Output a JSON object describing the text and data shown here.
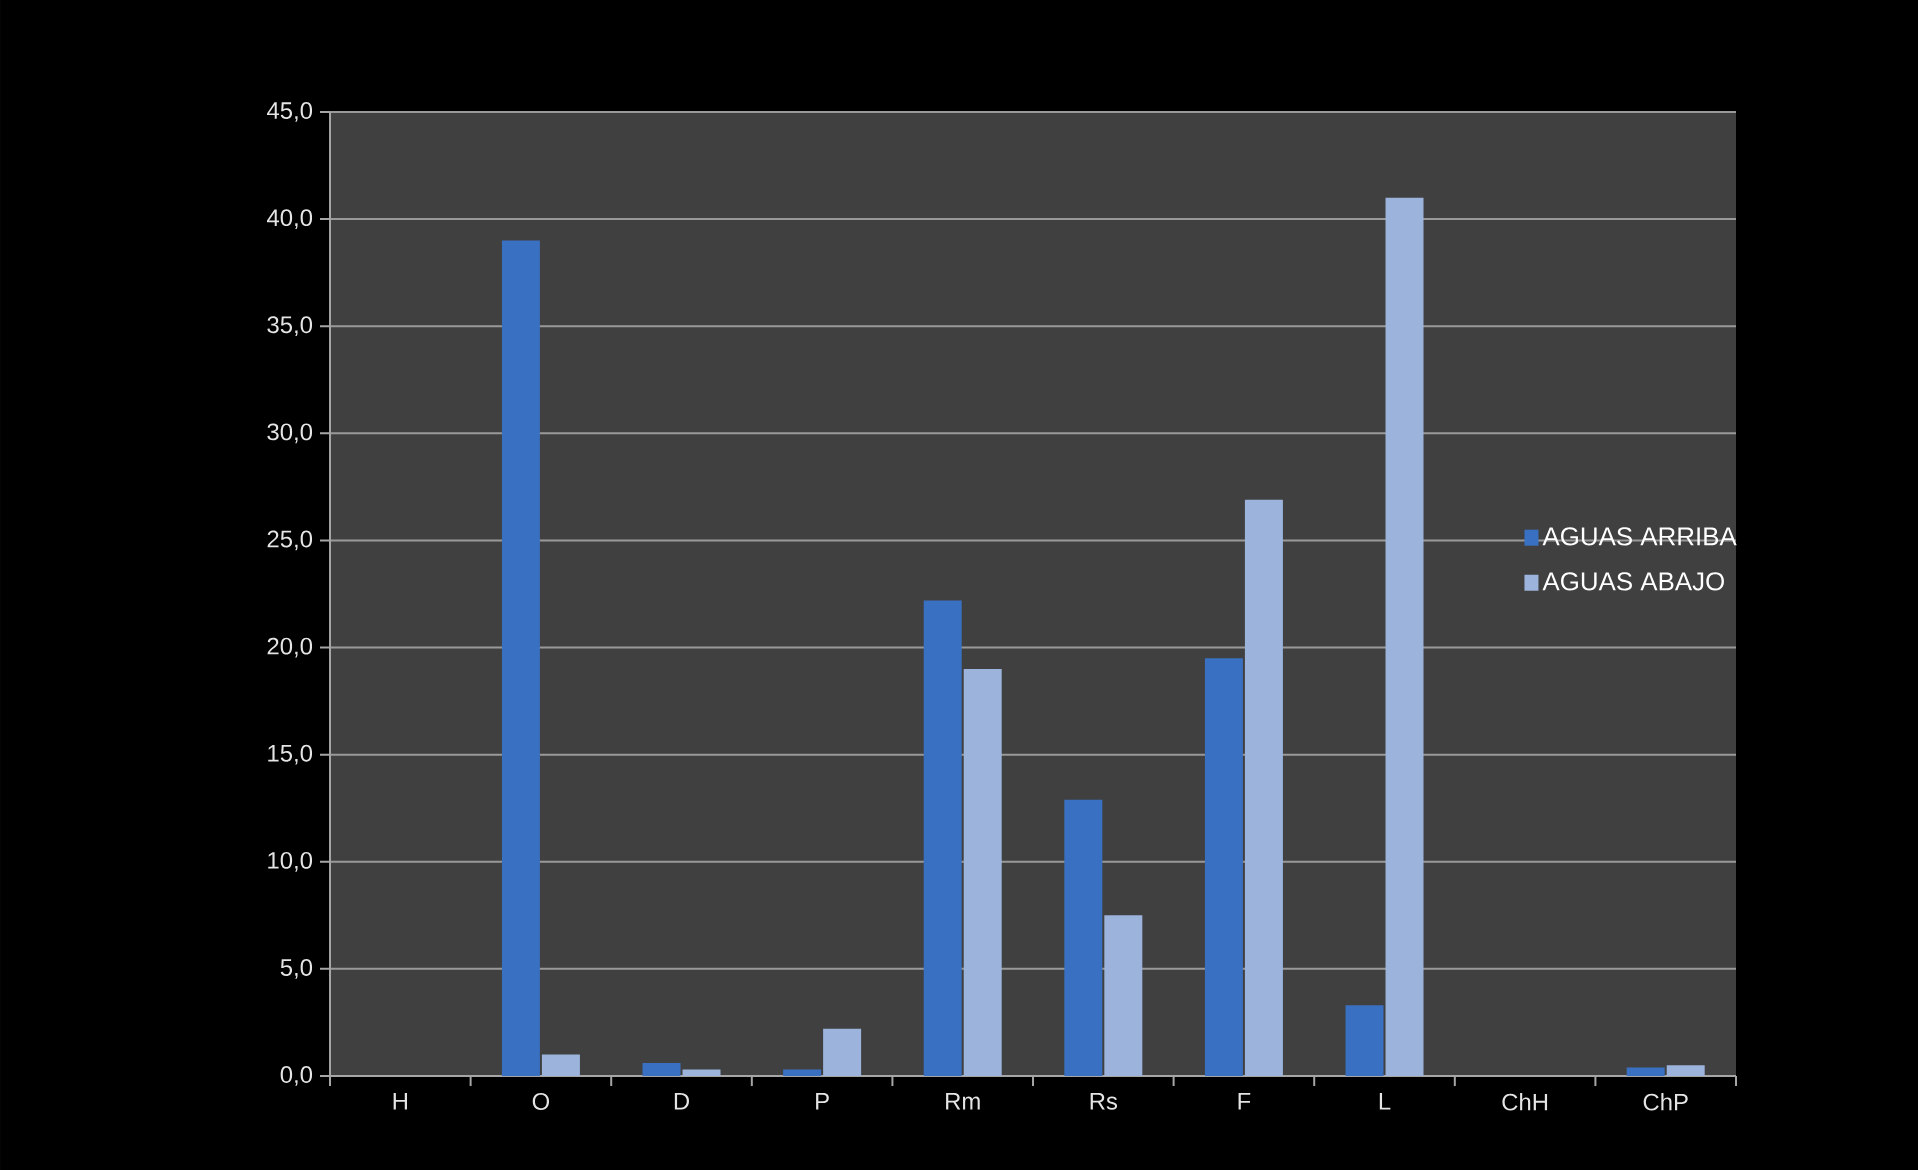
{
  "chart_data": {
    "type": "bar",
    "categories": [
      "H",
      "O",
      "D",
      "P",
      "Rm",
      "Rs",
      "F",
      "L",
      "ChH",
      "ChP"
    ],
    "series": [
      {
        "name": "AGUAS ARRIBA",
        "color": "#3a70c2",
        "values": [
          0,
          39.0,
          0.6,
          0.3,
          22.2,
          12.9,
          19.5,
          3.3,
          0,
          0.4
        ]
      },
      {
        "name": "AGUAS ABAJO",
        "color": "#9cb3db",
        "values": [
          0,
          1.0,
          0.3,
          2.2,
          19.0,
          7.5,
          26.9,
          41.0,
          0,
          0.5
        ]
      }
    ],
    "ylim": [
      0,
      45
    ],
    "yticks": [
      {
        "value": 0,
        "label": "0,0"
      },
      {
        "value": 5,
        "label": "5,0"
      },
      {
        "value": 10,
        "label": "10,0"
      },
      {
        "value": 15,
        "label": "15,0"
      },
      {
        "value": 20,
        "label": "20,0"
      },
      {
        "value": 25,
        "label": "25,0"
      },
      {
        "value": 30,
        "label": "30,0"
      },
      {
        "value": 35,
        "label": "35,0"
      },
      {
        "value": 40,
        "label": "40,0"
      },
      {
        "value": 45,
        "label": "45,0"
      }
    ],
    "grid": "y",
    "legend": "right"
  }
}
